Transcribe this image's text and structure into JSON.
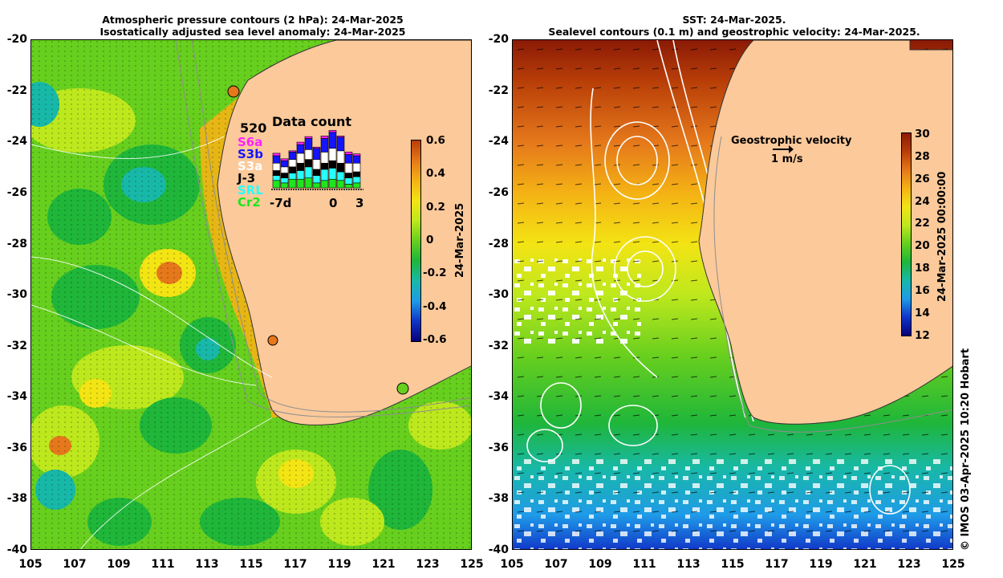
{
  "left_panel": {
    "title_line1": "Atmospheric pressure contours (2 hPa): 24-Mar-2025",
    "title_line2": "Isostatically adjusted sea level anomaly: 24-Mar-2025",
    "colorbar": {
      "date_label": "24-Mar-2025",
      "ticks": [
        "0.6",
        "0.4",
        "0.2",
        "0",
        "-0.2",
        "-0.4",
        "-0.6"
      ],
      "colors": [
        "#07007a",
        "#1035c8",
        "#1f9be8",
        "#18b8a8",
        "#1fb63a",
        "#67cf1e",
        "#bde81d",
        "#f3e414",
        "#f4b214",
        "#e5781b",
        "#b83e08"
      ]
    },
    "data_count": {
      "title": "Data count",
      "max": "520",
      "missions": [
        {
          "name": "S6a",
          "color": "#ff22ff"
        },
        {
          "name": "S3b",
          "color": "#1414ff"
        },
        {
          "name": "S3a",
          "color": "#ffffff"
        },
        {
          "name": "J-3",
          "color": "#000000"
        },
        {
          "name": "SRL",
          "color": "#26ffff"
        },
        {
          "name": "Cr2",
          "color": "#1fe51f"
        }
      ],
      "x_labels": [
        "-7d",
        "0",
        "3"
      ],
      "bars": [
        [
          60,
          40,
          40,
          60,
          60
        ],
        [
          40,
          40,
          40,
          50,
          50
        ],
        [
          70,
          50,
          50,
          60,
          60
        ],
        [
          70,
          70,
          60,
          80,
          70
        ],
        [
          80,
          90,
          60,
          80,
          90
        ],
        [
          40,
          60,
          50,
          80,
          90
        ],
        [
          60,
          90,
          50,
          90,
          110
        ],
        [
          70,
          90,
          60,
          100,
          130
        ],
        [
          60,
          70,
          70,
          100,
          110
        ],
        [
          30,
          50,
          40,
          80,
          70
        ],
        [
          40,
          50,
          40,
          70,
          60
        ]
      ]
    }
  },
  "right_panel": {
    "title_line1": "SST: 24-Mar-2025.",
    "title_line2": "Sealevel contours (0.1 m) and geostrophic velocity: 24-Mar-2025.",
    "legend_title": "Geostrophic velocity",
    "legend_scale": "1 m/s",
    "colorbar": {
      "date_label": "24-Mar-2025 00:00:00",
      "ticks": [
        "30",
        "28",
        "26",
        "24",
        "22",
        "20",
        "18",
        "16",
        "14",
        "12"
      ],
      "colors": [
        "#07007a",
        "#1035c8",
        "#1f9be8",
        "#18b8a8",
        "#1fb63a",
        "#67cf1e",
        "#bde81d",
        "#f3e414",
        "#f4b214",
        "#e5781b",
        "#b83e08",
        "#8a1a06"
      ]
    }
  },
  "axes": {
    "y_ticks": [
      "-20",
      "-22",
      "-24",
      "-26",
      "-28",
      "-30",
      "-32",
      "-34",
      "-36",
      "-38",
      "-40"
    ],
    "x_ticks": [
      "105",
      "107",
      "109",
      "111",
      "113",
      "115",
      "117",
      "119",
      "121",
      "123",
      "125"
    ]
  },
  "colors": {
    "land": "#fbc99a"
  },
  "credit": "© IMOS 03-Apr-2025 10:20 Hobart"
}
